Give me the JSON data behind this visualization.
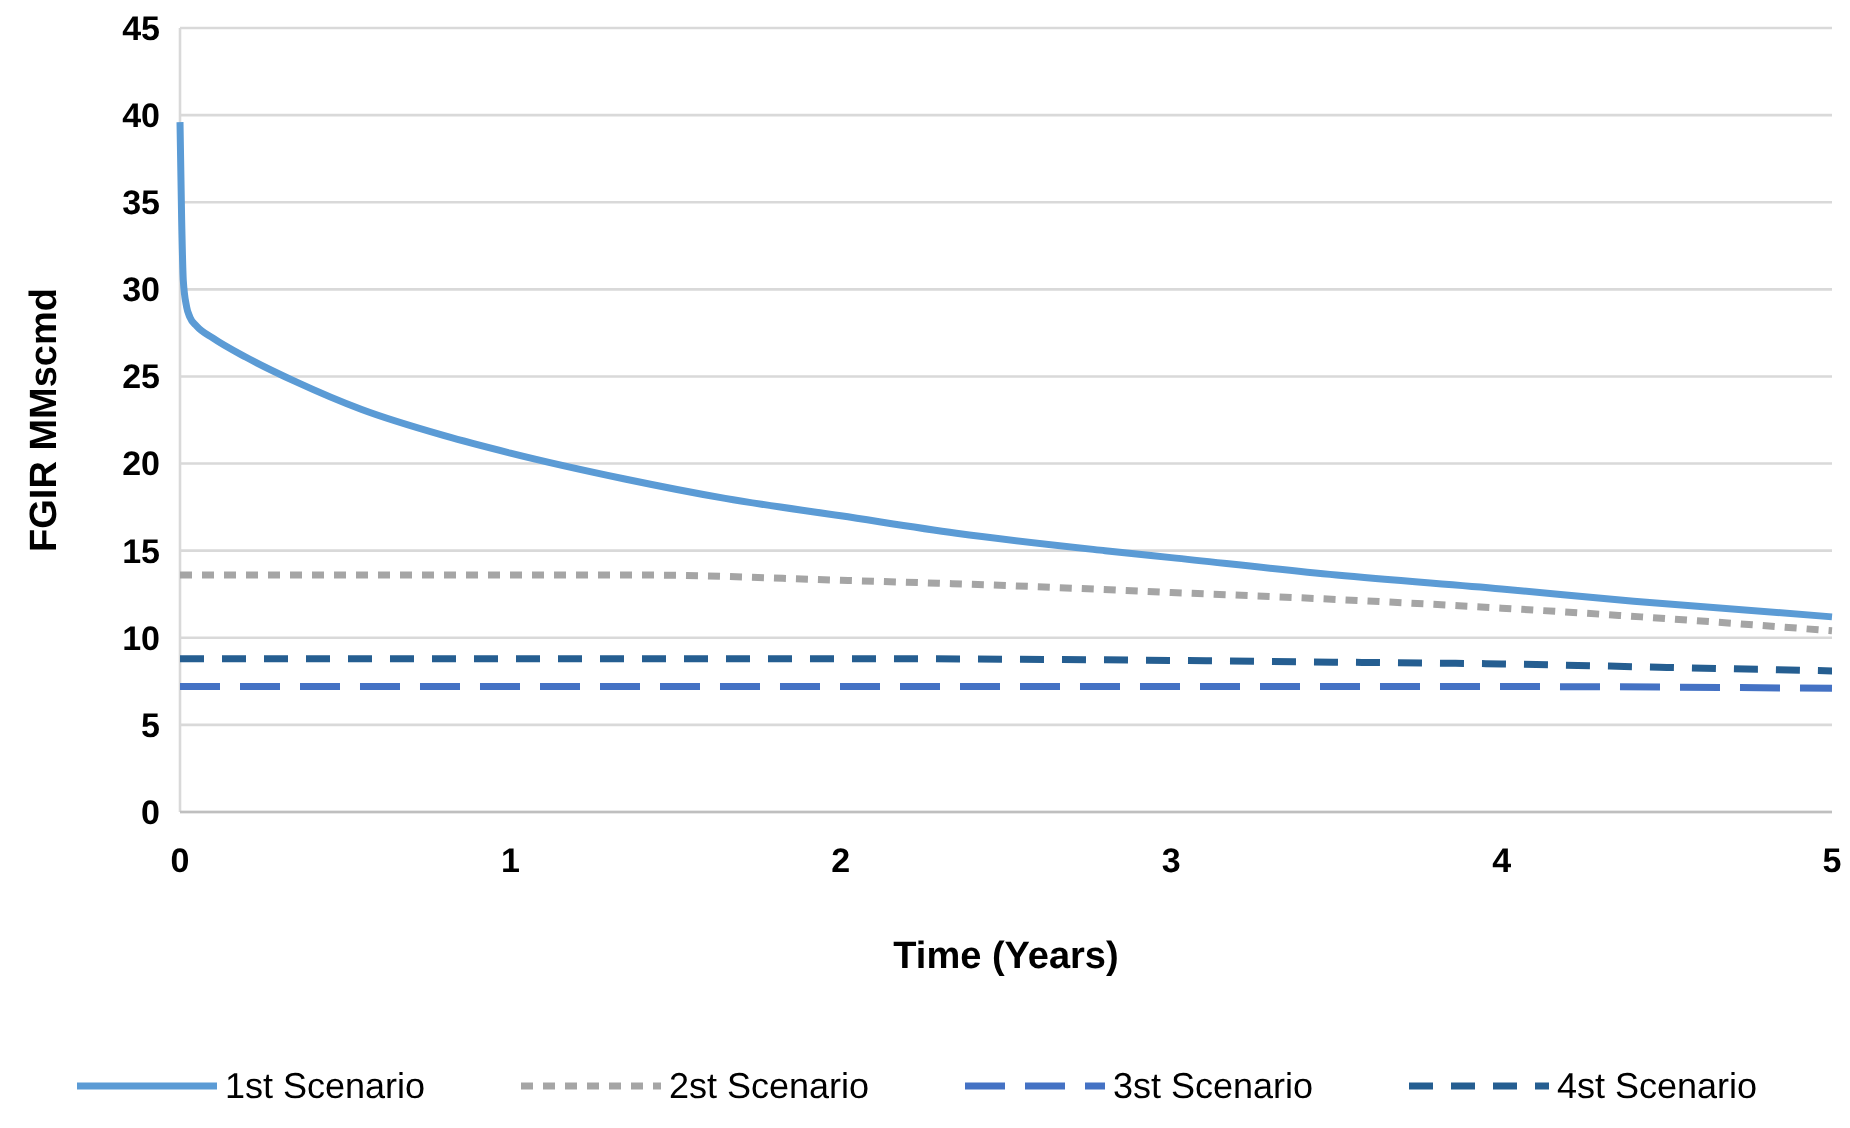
{
  "chart_data": {
    "type": "line",
    "xlabel": "Time (Years)",
    "ylabel": "FGIR MMscmd",
    "xlim": [
      0,
      5
    ],
    "xticks": [
      0,
      1,
      2,
      3,
      4,
      5
    ],
    "ylim": [
      0,
      45
    ],
    "yticks": [
      0,
      5,
      10,
      15,
      20,
      25,
      30,
      35,
      40,
      45
    ],
    "grid": "y",
    "legend": "bottom",
    "series": [
      {
        "name": "1st Scenario",
        "color": "#5b9bd5",
        "line_style": "solid",
        "x": [
          0,
          0.005,
          0.01,
          0.02,
          0.03,
          0.05,
          0.1,
          0.2,
          0.35,
          0.55,
          0.8,
          1,
          1.35,
          1.65,
          2,
          2.35,
          2.8,
          3,
          3.5,
          4,
          4.4,
          5
        ],
        "values": [
          39.6,
          34,
          30.5,
          29,
          28.4,
          27.9,
          27.2,
          26.1,
          24.7,
          23.1,
          21.6,
          20.6,
          19.1,
          18,
          17,
          16,
          15,
          14.6,
          13.6,
          12.8,
          12.1,
          11.2
        ]
      },
      {
        "name": "2st Scenario",
        "color": "#a5a5a5",
        "line_style": "dotted",
        "x": [
          0,
          0.5,
          1,
          1.4,
          2,
          2.5,
          3,
          3.5,
          4,
          4.5,
          5
        ],
        "values": [
          13.6,
          13.6,
          13.6,
          13.6,
          13.3,
          13,
          12.6,
          12.2,
          11.7,
          11.1,
          10.4
        ]
      },
      {
        "name": "3st Scenario",
        "color": "#4472c4",
        "line_style": "long-dashed",
        "x": [
          0,
          1,
          2,
          3,
          4,
          5
        ],
        "values": [
          7.2,
          7.2,
          7.2,
          7.2,
          7.2,
          7.1
        ]
      },
      {
        "name": "4st Scenario",
        "color": "#255e91",
        "line_style": "dashed",
        "x": [
          0,
          1,
          2,
          3,
          3.5,
          4,
          4.5,
          5
        ],
        "values": [
          8.8,
          8.8,
          8.8,
          8.7,
          8.6,
          8.5,
          8.3,
          8.1
        ]
      }
    ]
  }
}
